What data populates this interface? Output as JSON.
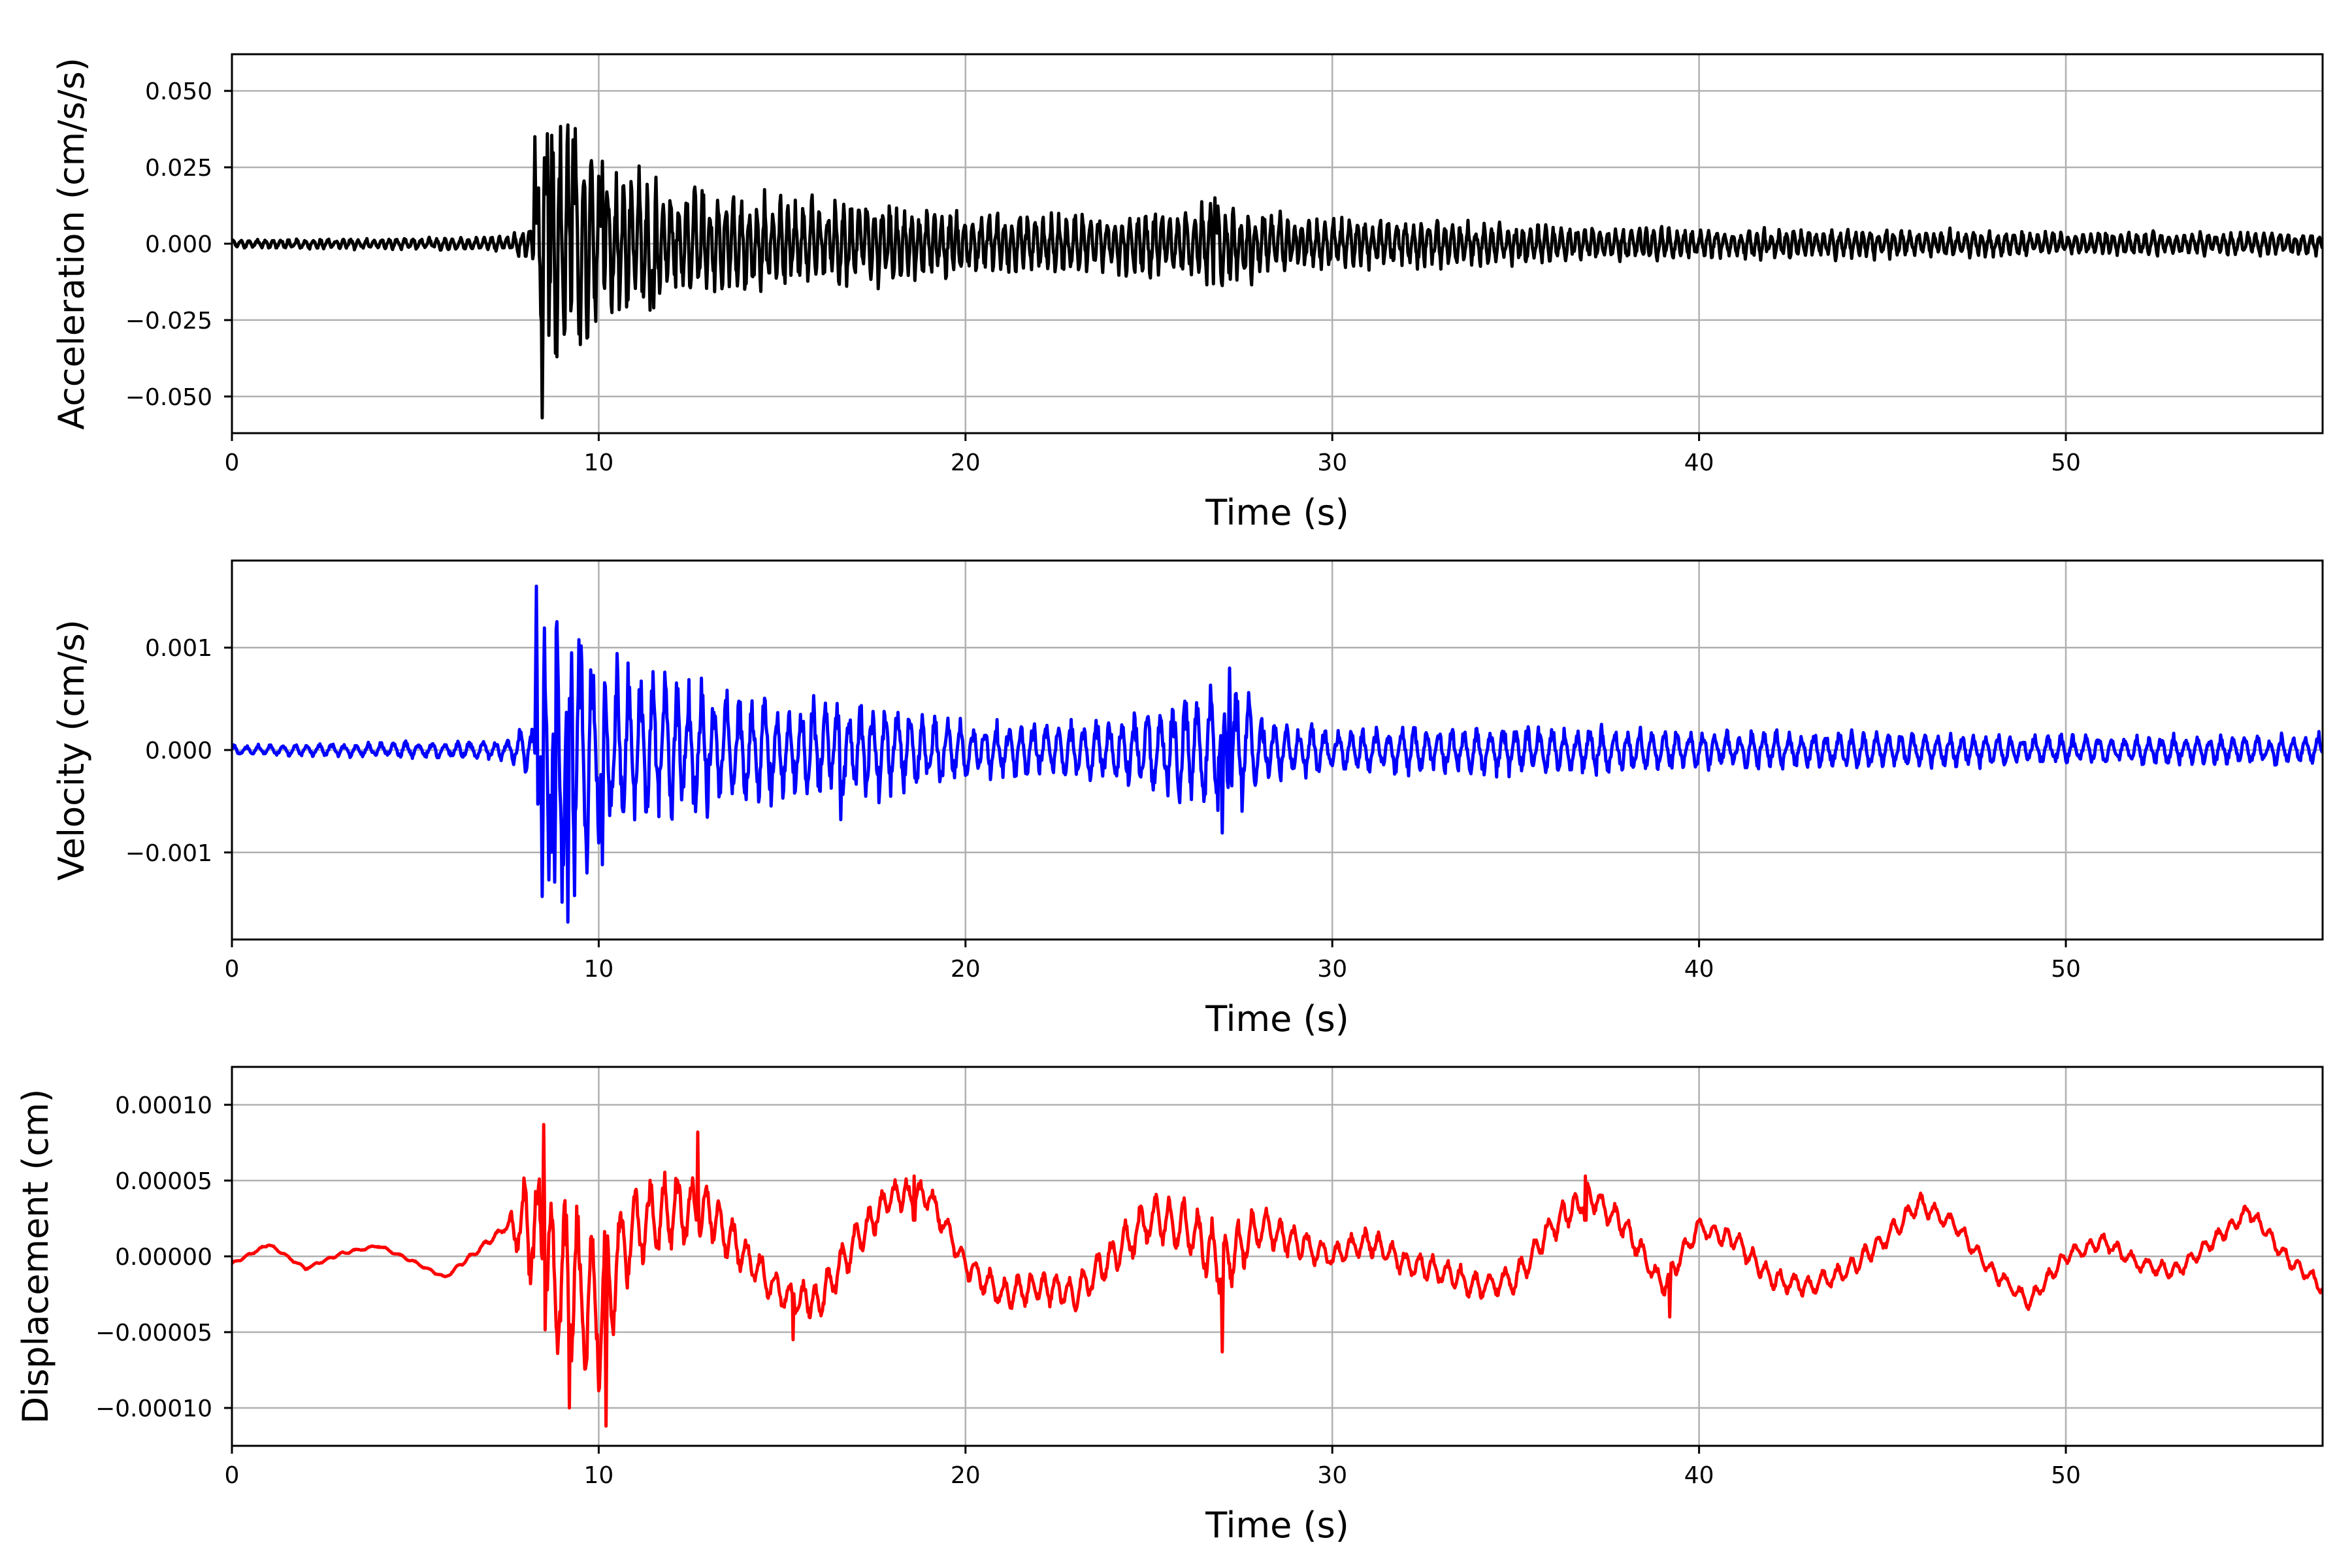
{
  "chart_data": [
    {
      "type": "line",
      "xlabel": "Time (s)",
      "ylabel": "Acceleration (cm/s/s)",
      "xlim": [
        0,
        57
      ],
      "ylim": [
        -0.062,
        0.062
      ],
      "x_ticks": [
        0,
        10,
        20,
        30,
        40,
        50
      ],
      "y_ticks": [
        -0.05,
        -0.025,
        0.0,
        0.025,
        0.05
      ],
      "y_tick_labels": [
        "−0.050",
        "−0.025",
        "0.000",
        "0.025",
        "0.050"
      ],
      "grid": true,
      "line_color": "#000000",
      "envelope": {
        "x": [
          0,
          7.5,
          8.2,
          8.5,
          9.0,
          10.0,
          12.0,
          14.0,
          16.0,
          18.0,
          20.0,
          22.0,
          24.0,
          25.5,
          26.8,
          28.0,
          29.0,
          32.0,
          35.0,
          38.0,
          40.0,
          45.0,
          50.0,
          57.0
        ],
        "amp": [
          0.0015,
          0.0025,
          0.006,
          0.045,
          0.04,
          0.03,
          0.022,
          0.017,
          0.015,
          0.014,
          0.011,
          0.01,
          0.01,
          0.011,
          0.016,
          0.012,
          0.009,
          0.008,
          0.007,
          0.006,
          0.005,
          0.005,
          0.004,
          0.004
        ]
      },
      "period": 0.22,
      "peaks": [
        {
          "t": 8.25,
          "v": 0.035
        },
        {
          "t": 8.45,
          "v": -0.057
        },
        {
          "t": 8.6,
          "v": 0.036
        },
        {
          "t": 8.85,
          "v": -0.037
        },
        {
          "t": 9.3,
          "v": 0.034
        },
        {
          "t": 9.5,
          "v": -0.033
        },
        {
          "t": 10.1,
          "v": 0.027
        },
        {
          "t": 11.5,
          "v": -0.021
        },
        {
          "t": 26.8,
          "v": 0.015
        }
      ],
      "seed": 11
    },
    {
      "type": "line",
      "xlabel": "Time (s)",
      "ylabel": "Velocity (cm/s)",
      "xlim": [
        0,
        57
      ],
      "ylim": [
        -0.00185,
        0.00185
      ],
      "x_ticks": [
        0,
        10,
        20,
        30,
        40,
        50
      ],
      "y_ticks": [
        -0.001,
        0.0,
        0.001
      ],
      "y_tick_labels": [
        "−0.001",
        "0.000",
        "0.001"
      ],
      "grid": true,
      "line_color": "#0000ff",
      "envelope": {
        "x": [
          0,
          7.5,
          8.2,
          8.5,
          9.2,
          10.2,
          12.0,
          14.0,
          15.5,
          16.8,
          18.0,
          20.0,
          22.0,
          24.0,
          25.0,
          26.6,
          27.2,
          28.5,
          30.0,
          35.0,
          37.0,
          40.0,
          45.0,
          50.0,
          57.0
        ],
        "amp": [
          5e-05,
          0.0001,
          0.0003,
          0.0015,
          0.0015,
          0.00095,
          0.0007,
          0.0006,
          0.0005,
          0.0005,
          0.00045,
          0.0003,
          0.0003,
          0.0003,
          0.00045,
          0.0006,
          0.0007,
          0.0003,
          0.00022,
          0.00025,
          0.00025,
          0.0002,
          0.00018,
          0.00015,
          0.00015
        ]
      },
      "period": 0.35,
      "peaks": [
        {
          "t": 8.3,
          "v": 0.0016
        },
        {
          "t": 8.45,
          "v": -0.00143
        },
        {
          "t": 8.8,
          "v": -0.00129
        },
        {
          "t": 9.15,
          "v": -0.00168
        },
        {
          "t": 9.25,
          "v": 0.00095
        },
        {
          "t": 10.1,
          "v": -0.00112
        },
        {
          "t": 10.8,
          "v": 0.00085
        },
        {
          "t": 16.6,
          "v": -0.00068
        },
        {
          "t": 27.0,
          "v": -0.00081
        },
        {
          "t": 27.2,
          "v": 0.0008
        },
        {
          "t": 56.9,
          "v": 0.00018
        }
      ],
      "seed": 23
    },
    {
      "type": "line",
      "xlabel": "Time (s)",
      "ylabel": "Displacement (cm)",
      "xlim": [
        0,
        57
      ],
      "ylim": [
        -0.000125,
        0.000125
      ],
      "x_ticks": [
        0,
        10,
        20,
        30,
        40,
        50
      ],
      "y_ticks": [
        -0.0001,
        -5e-05,
        0.0,
        5e-05,
        0.0001
      ],
      "y_tick_labels": [
        "−0.00010",
        "−0.00005",
        "0.00000",
        "0.00005",
        "0.00010"
      ],
      "grid": true,
      "line_color": "#ff0000",
      "baseline": {
        "x": [
          0,
          1.0,
          2.0,
          3.0,
          4.0,
          5.0,
          5.8,
          6.5,
          7.5,
          8.2,
          9.0,
          10.0,
          11.0,
          12.0,
          13.0,
          14.0,
          15.0,
          16.0,
          17.0,
          18.0,
          19.0,
          20.0,
          21.0,
          22.0,
          23.0,
          24.0,
          25.0,
          26.0,
          27.0,
          28.0,
          29.0,
          30.0,
          31.0,
          32.0,
          33.0,
          34.0,
          35.0,
          36.0,
          37.0,
          38.0,
          39.0,
          40.0,
          41.0,
          42.0,
          43.0,
          44.0,
          45.0,
          46.0,
          47.0,
          48.0,
          49.0,
          50.0,
          51.0,
          52.0,
          53.0,
          54.0,
          55.0,
          56.0,
          57.0
        ],
        "v": [
          -5e-06,
          8e-06,
          -8e-06,
          2e-06,
          7e-06,
          -4e-06,
          -1.4e-05,
          0.0,
          2e-05,
          2e-05,
          -2e-05,
          -3e-05,
          2e-05,
          3e-05,
          3e-05,
          0.0,
          -2.5e-05,
          -3e-05,
          1e-05,
          4e-05,
          4e-05,
          -5e-06,
          -2.5e-05,
          -2e-05,
          -2.5e-05,
          0.0,
          2.5e-05,
          2e-05,
          -5e-06,
          2e-05,
          1e-05,
          0.0,
          1e-05,
          -5e-06,
          -1e-05,
          -2e-05,
          -1.5e-05,
          2e-05,
          4e-05,
          2e-05,
          -2e-05,
          2e-05,
          1e-05,
          -1.5e-05,
          -2e-05,
          -1e-05,
          1e-05,
          3.5e-05,
          2e-05,
          -1e-05,
          -3e-05,
          0.0,
          1e-05,
          -5e-06,
          -1e-05,
          1e-05,
          3e-05,
          0.0,
          -2e-05
        ],
        "noise": [
          1e-06,
          1e-06,
          1e-06,
          1e-06,
          1e-06,
          1e-06,
          1e-06,
          2e-06,
          3e-06,
          5e-05,
          6e-05,
          6e-05,
          3e-05,
          3e-05,
          2e-05,
          1.5e-05,
          1.2e-05,
          1.5e-05,
          1.5e-05,
          1.2e-05,
          1e-05,
          1e-05,
          1.2e-05,
          1.2e-05,
          1.2e-05,
          1.5e-05,
          1.8e-05,
          2e-05,
          2.5e-05,
          1.5e-05,
          1.2e-05,
          1e-05,
          1e-05,
          1e-05,
          1e-05,
          1e-05,
          1e-05,
          1.2e-05,
          1e-05,
          1e-05,
          8e-06,
          8e-06,
          8e-06,
          8e-06,
          8e-06,
          8e-06,
          8e-06,
          8e-06,
          6e-06,
          6e-06,
          6e-06,
          6e-06,
          6e-06,
          6e-06,
          6e-06,
          6e-06,
          6e-06,
          6e-06,
          6e-06
        ]
      },
      "period": 0.4,
      "peaks": [
        {
          "t": 8.5,
          "v": 8.7e-05
        },
        {
          "t": 9.2,
          "v": -0.0001
        },
        {
          "t": 10.2,
          "v": -0.000112
        },
        {
          "t": 12.7,
          "v": 8.2e-05
        },
        {
          "t": 15.3,
          "v": -5.5e-05
        },
        {
          "t": 18.6,
          "v": 5.3e-05
        },
        {
          "t": 27.0,
          "v": -6.3e-05
        },
        {
          "t": 36.9,
          "v": 5.3e-05
        },
        {
          "t": 39.2,
          "v": -4e-05
        }
      ],
      "seed": 37
    }
  ]
}
